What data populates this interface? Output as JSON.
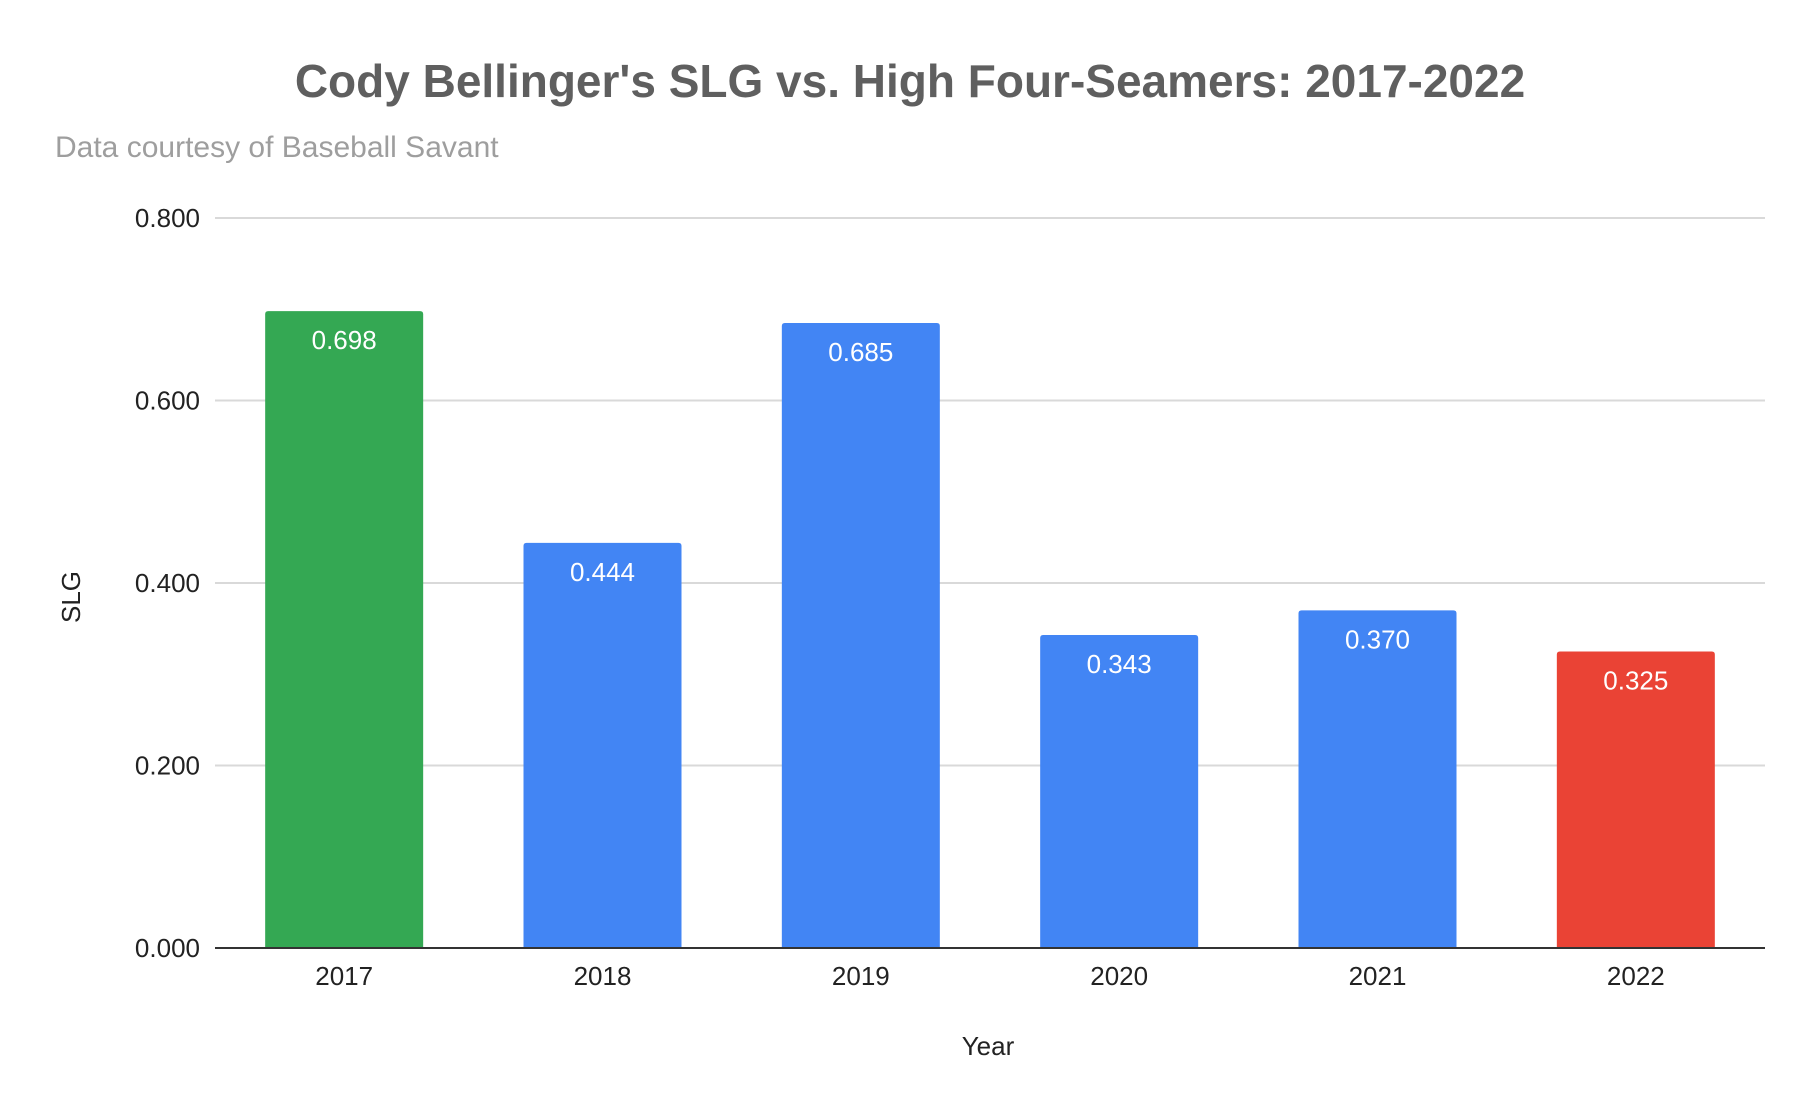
{
  "chart_data": {
    "type": "bar",
    "title": "Cody Bellinger's SLG vs. High Four-Seamers: 2017-2022",
    "subtitle": "Data courtesy of Baseball Savant",
    "xlabel": "Year",
    "ylabel": "SLG",
    "categories": [
      "2017",
      "2018",
      "2019",
      "2020",
      "2021",
      "2022"
    ],
    "values": [
      0.698,
      0.444,
      0.685,
      0.343,
      0.37,
      0.325
    ],
    "value_labels": [
      "0.698",
      "0.444",
      "0.685",
      "0.343",
      "0.370",
      "0.325"
    ],
    "bar_colors": [
      "#34a853",
      "#4285f4",
      "#4285f4",
      "#4285f4",
      "#4285f4",
      "#ea4335"
    ],
    "ylim": [
      0,
      0.8
    ],
    "yticks": [
      0,
      0.2,
      0.4,
      0.6,
      0.8
    ],
    "ytick_labels": [
      "0.000",
      "0.200",
      "0.400",
      "0.600",
      "0.800"
    ],
    "grid": true,
    "legend": "none",
    "colors": {
      "gridline": "#d9d9d9",
      "baseline": "#333333",
      "title": "#5f5f5f",
      "subtitle": "#9e9e9e",
      "text": "#222222",
      "bar_label": "#ffffff"
    }
  }
}
